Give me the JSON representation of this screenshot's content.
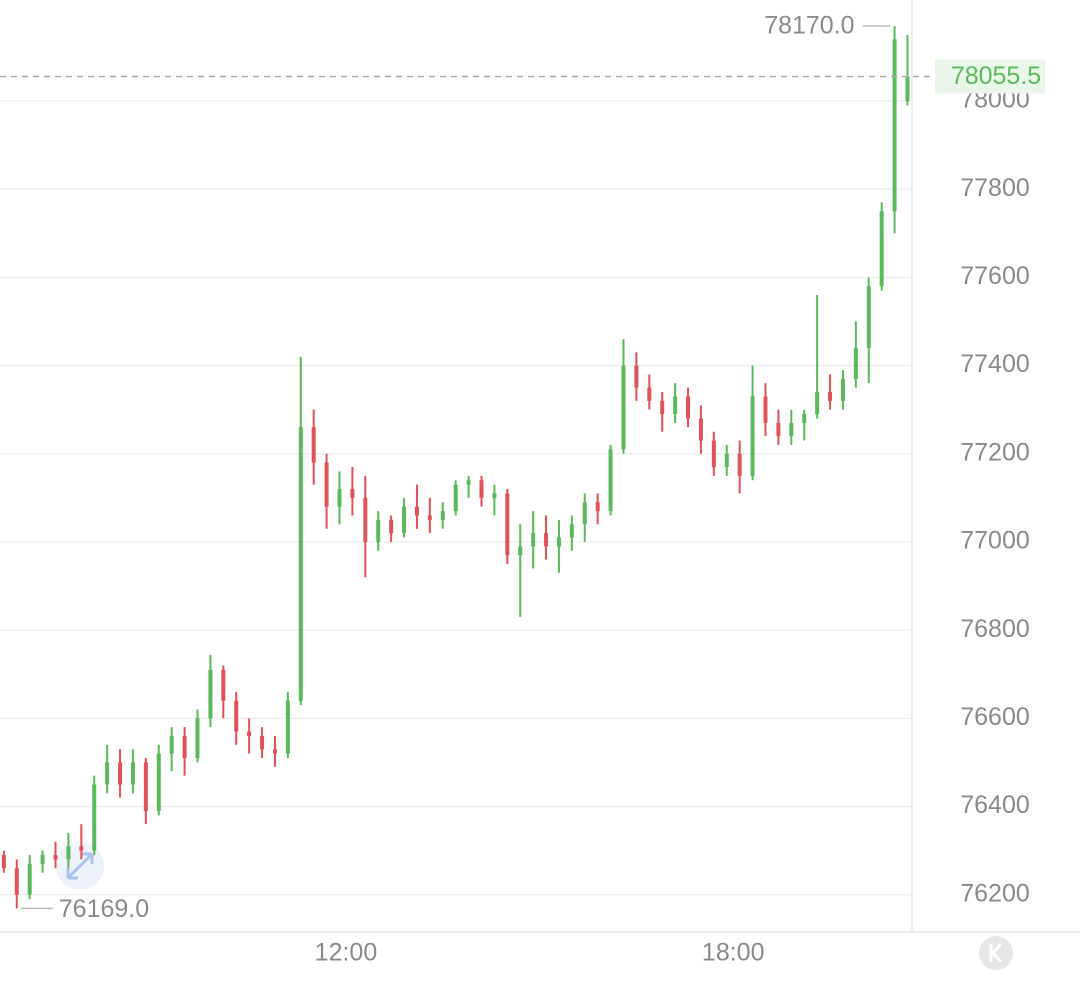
{
  "chart_data": {
    "type": "candlestick",
    "up_color": "#5cb85c",
    "down_color": "#e0525a",
    "x": [
      6.7,
      6.9,
      7.1,
      7.3,
      7.5,
      7.7,
      7.9,
      8.1,
      8.3,
      8.5,
      8.7,
      8.9,
      9.1,
      9.3,
      9.5,
      9.7,
      9.9,
      10.1,
      10.3,
      10.5,
      10.7,
      10.9,
      11.1,
      11.3,
      11.5,
      11.7,
      11.9,
      12.1,
      12.3,
      12.5,
      12.7,
      12.9,
      13.1,
      13.3,
      13.5,
      13.7,
      13.9,
      14.1,
      14.3,
      14.5,
      14.7,
      14.9,
      15.1,
      15.3,
      15.5,
      15.7,
      15.9,
      16.1,
      16.3,
      16.5,
      16.7,
      16.9,
      17.1,
      17.3,
      17.5,
      17.7,
      17.9,
      18.1,
      18.3,
      18.5,
      18.7,
      18.9,
      19.1,
      19.3,
      19.5,
      19.7,
      19.9,
      20.1,
      20.3,
      20.5,
      20.7
    ],
    "open": [
      76290,
      76260,
      76200,
      76270,
      76290,
      76280,
      76310,
      76300,
      76450,
      76500,
      76450,
      76500,
      76390,
      76520,
      76560,
      76510,
      76600,
      76710,
      76640,
      76570,
      76560,
      76530,
      76520,
      76640,
      77260,
      77180,
      77080,
      77120,
      77100,
      77000,
      77050,
      77020,
      77080,
      77060,
      77050,
      77070,
      77130,
      77140,
      77100,
      77110,
      76970,
      76990,
      77020,
      76990,
      77010,
      77040,
      77090,
      77070,
      77210,
      77400,
      77350,
      77320,
      77290,
      77330,
      77280,
      77230,
      77170,
      77200,
      77150,
      77330,
      77270,
      77240,
      77270,
      77290,
      77340,
      77320,
      77370,
      77440,
      77580,
      77750,
      78000
    ],
    "high": [
      76300,
      76280,
      76290,
      76300,
      76320,
      76340,
      76360,
      76470,
      76540,
      76530,
      76530,
      76510,
      76540,
      76580,
      76580,
      76620,
      76744,
      76720,
      76660,
      76600,
      76580,
      76560,
      76660,
      77420,
      77300,
      77200,
      77160,
      77170,
      77150,
      77070,
      77060,
      77100,
      77130,
      77100,
      77090,
      77140,
      77150,
      77150,
      77130,
      77120,
      77040,
      77070,
      77060,
      77050,
      77060,
      77110,
      77110,
      77220,
      77460,
      77430,
      77380,
      77340,
      77360,
      77350,
      77310,
      77250,
      77220,
      77230,
      77400,
      77360,
      77300,
      77300,
      77300,
      77560,
      77380,
      77390,
      77500,
      77600,
      77770,
      78170,
      78150
    ],
    "low": [
      76250,
      76169,
      76190,
      76250,
      76260,
      76260,
      76280,
      76290,
      76430,
      76420,
      76430,
      76360,
      76380,
      76480,
      76470,
      76500,
      76580,
      76600,
      76540,
      76520,
      76510,
      76490,
      76510,
      76630,
      77130,
      77030,
      77040,
      77060,
      76920,
      76980,
      77000,
      77010,
      77030,
      77020,
      77030,
      77060,
      77100,
      77080,
      77060,
      76950,
      76830,
      76940,
      76960,
      76930,
      76980,
      77000,
      77040,
      77060,
      77200,
      77320,
      77300,
      77250,
      77270,
      77260,
      77200,
      77150,
      77150,
      77110,
      77140,
      77240,
      77220,
      77220,
      77230,
      77280,
      77300,
      77300,
      77350,
      77360,
      77570,
      77700,
      77990
    ],
    "close": [
      76260,
      76200,
      76270,
      76290,
      76280,
      76310,
      76300,
      76450,
      76500,
      76450,
      76500,
      76390,
      76520,
      76560,
      76510,
      76600,
      76710,
      76640,
      76570,
      76560,
      76530,
      76520,
      76640,
      77260,
      77180,
      77080,
      77120,
      77100,
      77000,
      77050,
      77020,
      77080,
      77060,
      77050,
      77070,
      77130,
      77140,
      77100,
      77110,
      76970,
      76990,
      77020,
      76990,
      77010,
      77040,
      77090,
      77070,
      77210,
      77400,
      77350,
      77320,
      77290,
      77330,
      77280,
      77230,
      77170,
      77200,
      77150,
      77330,
      77270,
      77240,
      77270,
      77290,
      77340,
      77320,
      77370,
      77440,
      77580,
      77750,
      78140,
      78055.5
    ],
    "xlim": [
      6.64,
      20.77
    ],
    "xticks": [
      {
        "value": 12,
        "label": "12:00"
      },
      {
        "value": 18,
        "label": "18:00"
      }
    ],
    "ylim": [
      76120,
      78229
    ],
    "yticks": [
      76200,
      76400,
      76600,
      76800,
      77000,
      77200,
      77400,
      77600,
      77800,
      78000
    ],
    "grid": true,
    "high_marker": {
      "value": 78170,
      "label": "78170.0"
    },
    "low_marker": {
      "value": 76169,
      "label": "76169.0"
    },
    "last_price": {
      "value": 78055.5,
      "label": "78055.5"
    }
  }
}
